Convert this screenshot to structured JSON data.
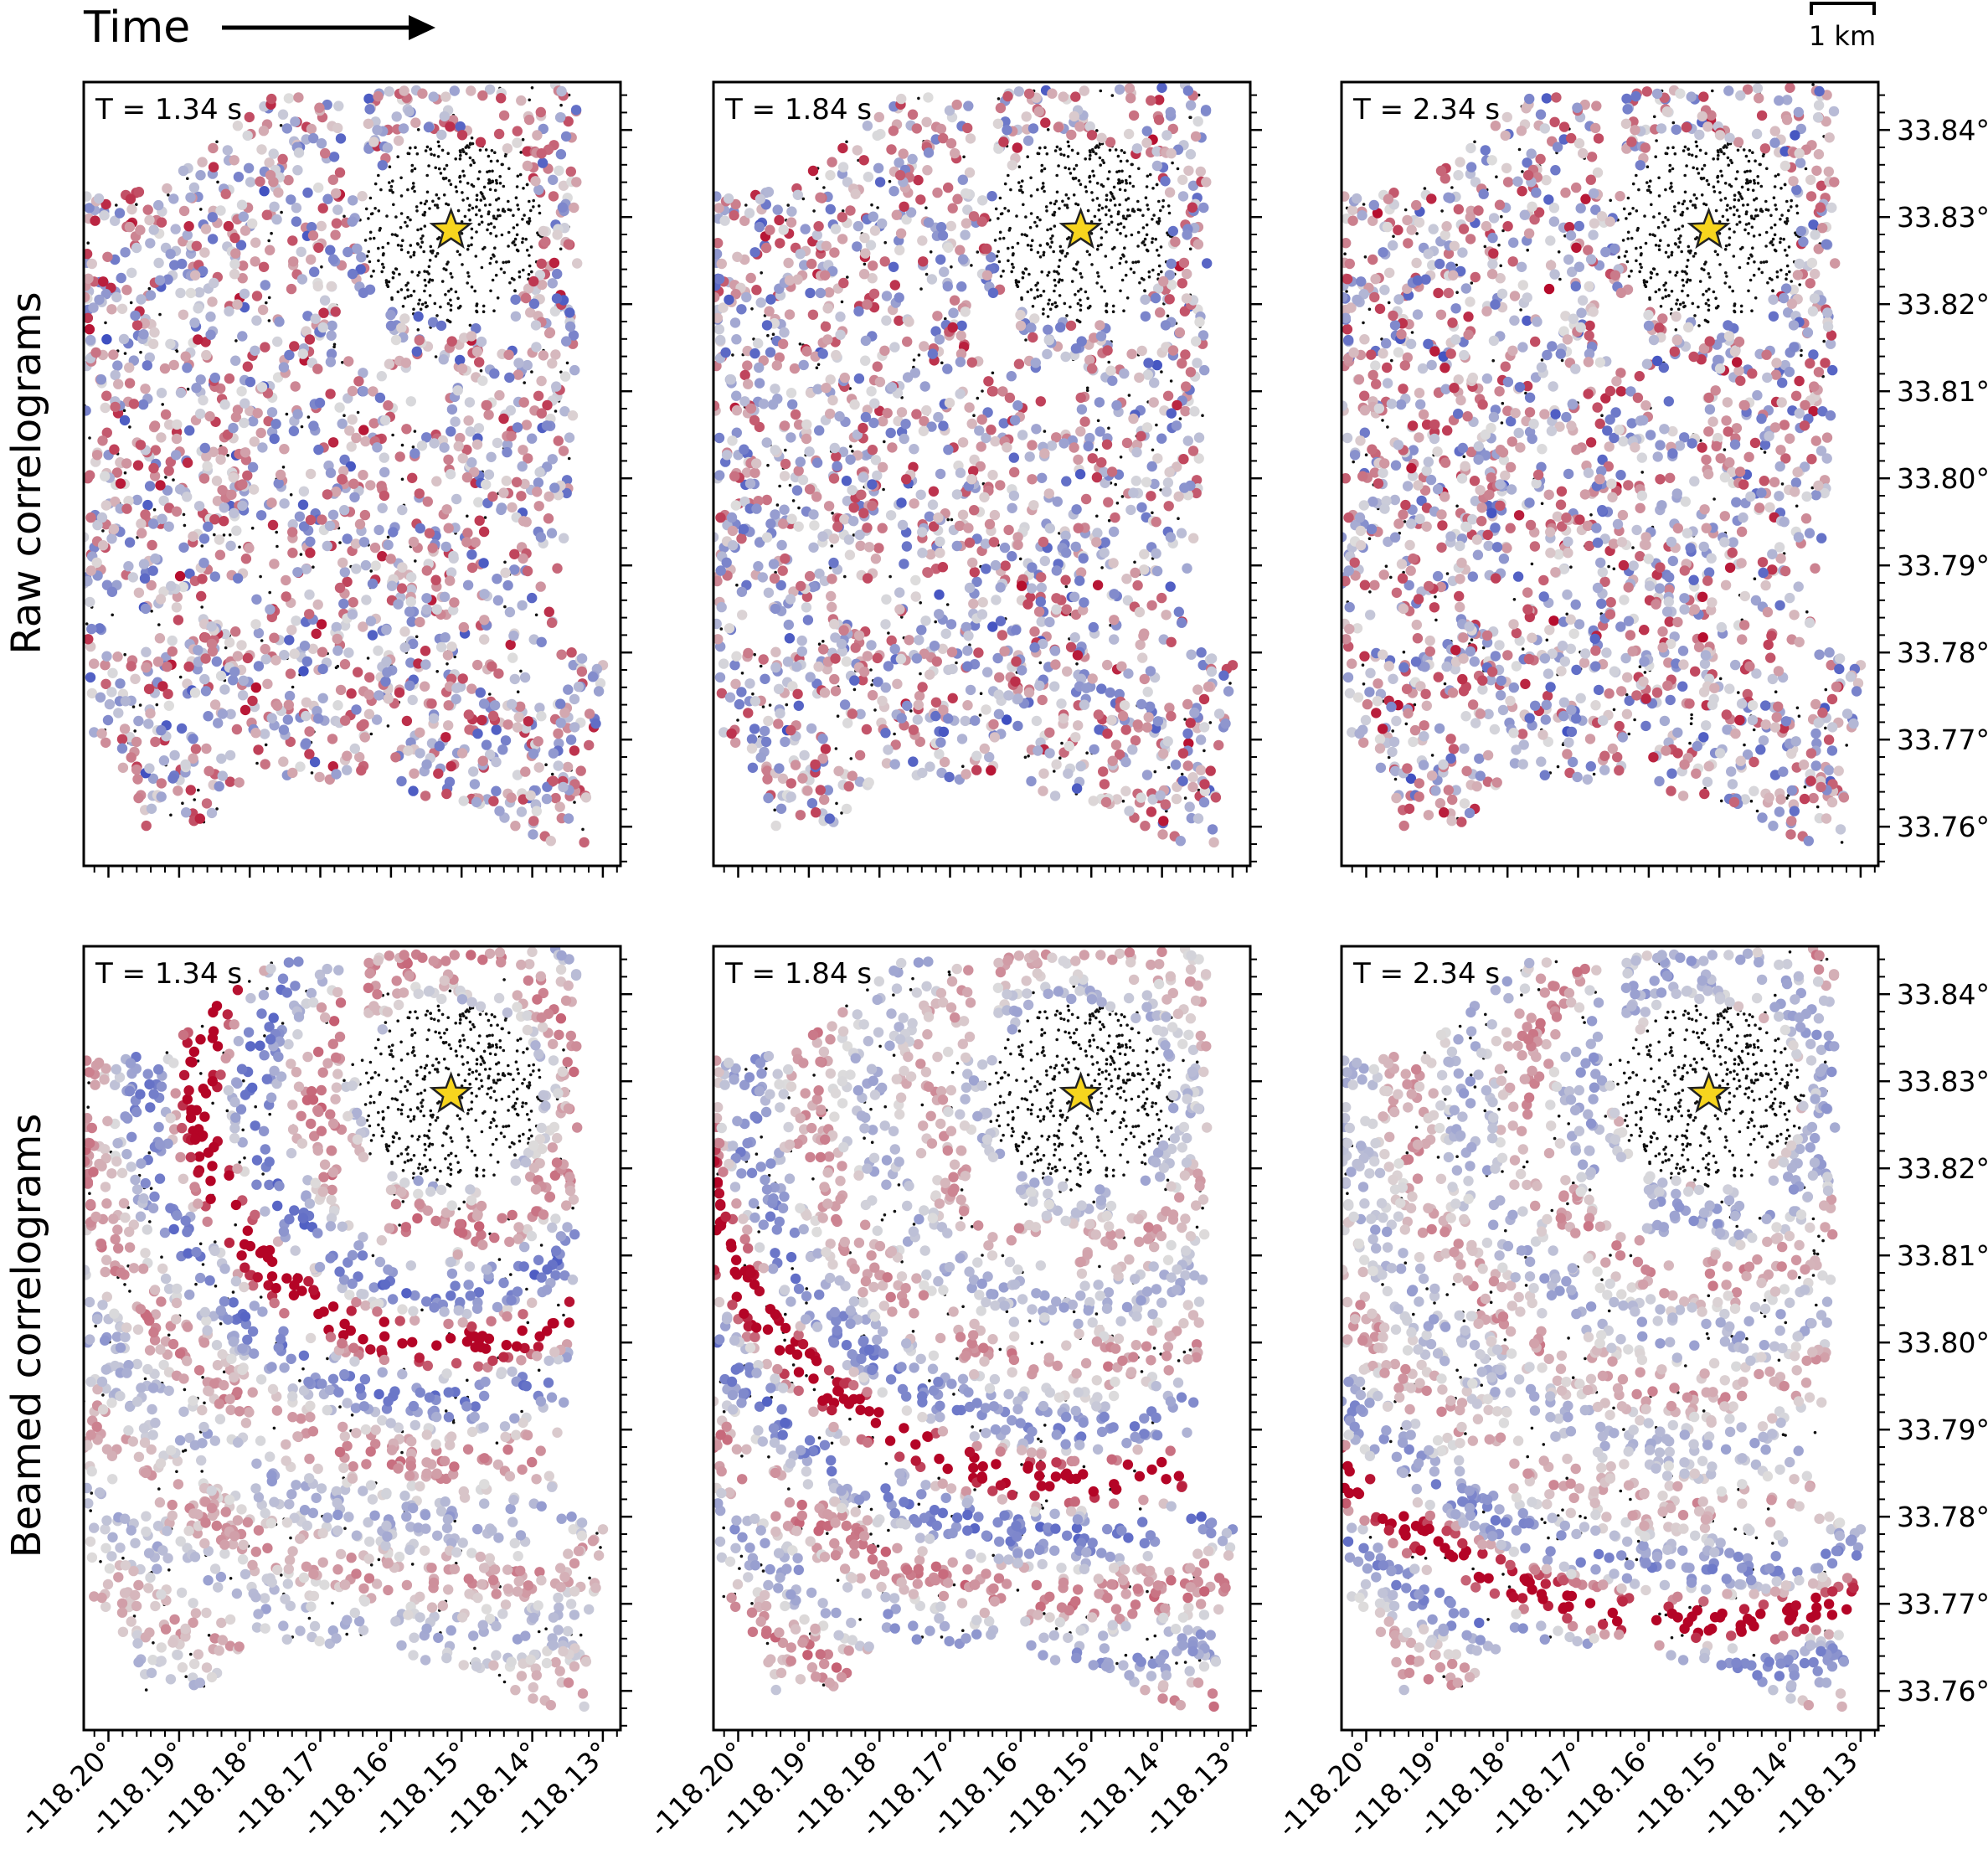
{
  "header": {
    "time_label": "Time",
    "scalebar_label": "1 km"
  },
  "rows": [
    {
      "label": "Raw correlograms"
    },
    {
      "label": "Beamed correlograms"
    }
  ],
  "colors": {
    "star_fill": "#f7d51e",
    "star_stroke": "#222222",
    "diverging_low": "#3b4cc0",
    "diverging_mid": "#dddcdc",
    "diverging_high": "#b40426",
    "station_dot": "#111111"
  },
  "chart_data": [
    {
      "type": "scatter",
      "row": 0,
      "col": 0,
      "title": "T = 1.34 s",
      "x_ticks": [
        "-118.20°",
        "-118.19°",
        "-118.18°",
        "-118.17°",
        "-118.16°",
        "-118.15°",
        "-118.14°",
        "-118.13°"
      ],
      "y_ticks": [
        "33.84°",
        "33.83°",
        "33.82°",
        "33.81°",
        "33.80°",
        "33.79°",
        "33.78°",
        "33.77°",
        "33.76°"
      ],
      "source": {
        "lon": -118.1515,
        "lat": 33.8285
      }
    },
    {
      "type": "scatter",
      "row": 0,
      "col": 1,
      "title": "T = 1.84 s",
      "x_ticks": [
        "-118.20°",
        "-118.19°",
        "-118.18°",
        "-118.17°",
        "-118.16°",
        "-118.15°",
        "-118.14°",
        "-118.13°"
      ],
      "y_ticks": [
        "33.84°",
        "33.83°",
        "33.82°",
        "33.81°",
        "33.80°",
        "33.79°",
        "33.78°",
        "33.77°",
        "33.76°"
      ],
      "source": {
        "lon": -118.1515,
        "lat": 33.8285
      }
    },
    {
      "type": "scatter",
      "row": 0,
      "col": 2,
      "title": "T = 2.34 s",
      "x_ticks": [
        "-118.20°",
        "-118.19°",
        "-118.18°",
        "-118.17°",
        "-118.16°",
        "-118.15°",
        "-118.14°",
        "-118.13°"
      ],
      "y_ticks": [
        "33.84°",
        "33.83°",
        "33.82°",
        "33.81°",
        "33.80°",
        "33.79°",
        "33.78°",
        "33.77°",
        "33.76°"
      ],
      "source": {
        "lon": -118.1515,
        "lat": 33.8285
      }
    },
    {
      "type": "scatter",
      "row": 1,
      "col": 0,
      "title": "T = 1.34 s",
      "x_ticks": [
        "-118.20°",
        "-118.19°",
        "-118.18°",
        "-118.17°",
        "-118.16°",
        "-118.15°",
        "-118.14°",
        "-118.13°"
      ],
      "y_ticks": [
        "33.84°",
        "33.83°",
        "33.82°",
        "33.81°",
        "33.80°",
        "33.79°",
        "33.78°",
        "33.77°",
        "33.76°"
      ],
      "source": {
        "lon": -118.1515,
        "lat": 33.8285
      }
    },
    {
      "type": "scatter",
      "row": 1,
      "col": 1,
      "title": "T = 1.84 s",
      "x_ticks": [
        "-118.20°",
        "-118.19°",
        "-118.18°",
        "-118.17°",
        "-118.16°",
        "-118.15°",
        "-118.14°",
        "-118.13°"
      ],
      "y_ticks": [
        "33.84°",
        "33.83°",
        "33.82°",
        "33.81°",
        "33.80°",
        "33.79°",
        "33.78°",
        "33.77°",
        "33.76°"
      ],
      "source": {
        "lon": -118.1515,
        "lat": 33.8285
      }
    },
    {
      "type": "scatter",
      "row": 1,
      "col": 2,
      "title": "T = 2.34 s",
      "x_ticks": [
        "-118.20°",
        "-118.19°",
        "-118.18°",
        "-118.17°",
        "-118.16°",
        "-118.15°",
        "-118.14°",
        "-118.13°"
      ],
      "y_ticks": [
        "33.84°",
        "33.83°",
        "33.82°",
        "33.81°",
        "33.80°",
        "33.79°",
        "33.78°",
        "33.77°",
        "33.76°"
      ],
      "source": {
        "lon": -118.1515,
        "lat": 33.8285
      }
    }
  ]
}
